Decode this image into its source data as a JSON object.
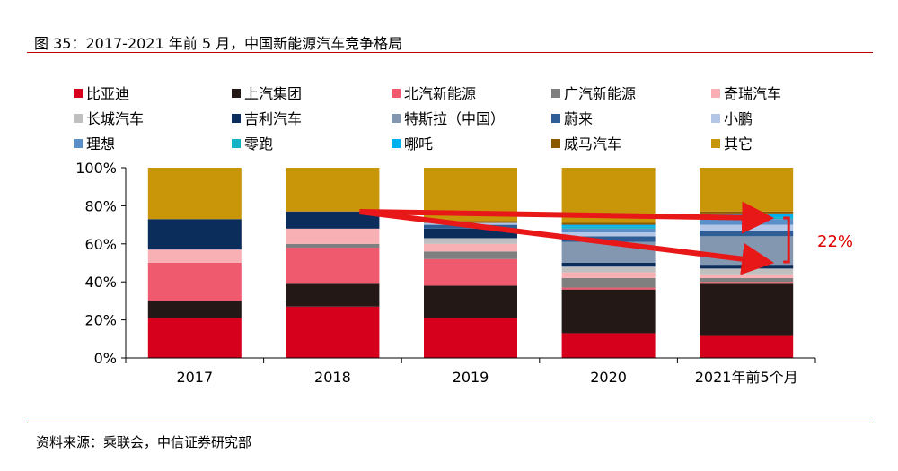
{
  "figure": {
    "title": "图 35：2017-2021 年前 5 月，中国新能源汽车竞争格局",
    "source": "资料来源：乘联会，中信证券研究部"
  },
  "chart_data": {
    "type": "bar",
    "stacked": true,
    "percent": true,
    "categories": [
      "2017",
      "2018",
      "2019",
      "2020",
      "2021年前5个月"
    ],
    "ylim": [
      0,
      100
    ],
    "yticks": [
      "0%",
      "20%",
      "40%",
      "60%",
      "80%",
      "100%"
    ],
    "legend_position": "top",
    "series": [
      {
        "name": "比亚迪",
        "color": "#d6001c",
        "values": [
          21,
          27,
          21,
          13,
          12
        ]
      },
      {
        "name": "上汽集团",
        "color": "#231815",
        "values": [
          9,
          12,
          17,
          23,
          27
        ]
      },
      {
        "name": "北汽新能源",
        "color": "#f05a6e",
        "values": [
          20,
          19,
          14,
          1,
          1
        ]
      },
      {
        "name": "广汽新能源",
        "color": "#7f7f7f",
        "values": [
          0,
          2,
          4,
          5,
          2
        ]
      },
      {
        "name": "奇瑞汽车",
        "color": "#f9b0b4",
        "values": [
          7,
          8,
          4,
          3,
          2
        ]
      },
      {
        "name": "长城汽车",
        "color": "#bfbfbf",
        "values": [
          0,
          0,
          3,
          3,
          3
        ]
      },
      {
        "name": "吉利汽车",
        "color": "#0b2d5c",
        "values": [
          16,
          9,
          5,
          2,
          2
        ]
      },
      {
        "name": "特斯拉（中国）",
        "color": "#8497b0",
        "values": [
          0,
          0,
          0,
          11,
          15
        ]
      },
      {
        "name": "蔚来",
        "color": "#2e5e95",
        "values": [
          0,
          0,
          2,
          3,
          3
        ]
      },
      {
        "name": "小鹏",
        "color": "#b4c6e7",
        "values": [
          0,
          0,
          1,
          2,
          3
        ]
      },
      {
        "name": "理想",
        "color": "#5b8fc9",
        "values": [
          0,
          0,
          0,
          2,
          3
        ]
      },
      {
        "name": "零跑",
        "color": "#14b4c8",
        "values": [
          0,
          0,
          0,
          1,
          1
        ]
      },
      {
        "name": "哪吒",
        "color": "#00b0f0",
        "values": [
          0,
          0,
          0,
          1,
          2
        ]
      },
      {
        "name": "威马汽车",
        "color": "#8b5a00",
        "values": [
          0,
          0,
          1,
          1,
          1
        ]
      },
      {
        "name": "其它",
        "color": "#c9960a",
        "values": [
          27,
          23,
          28,
          29,
          23
        ]
      }
    ],
    "annotations": [
      {
        "text": "22%",
        "color": "#e00000"
      }
    ]
  }
}
